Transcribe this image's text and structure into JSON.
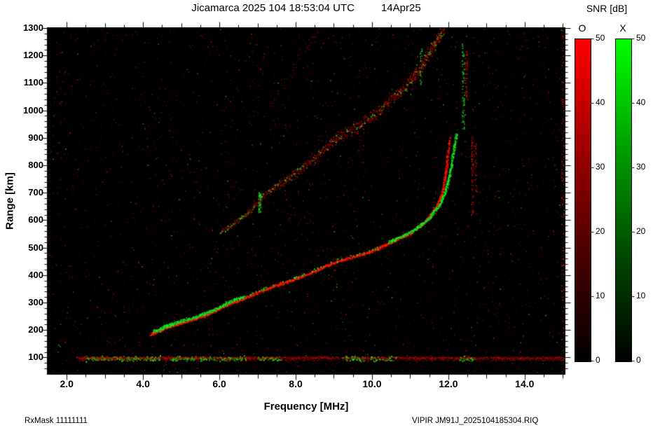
{
  "header": {
    "title": "Jicamarca 2025 104 18:53:04 UTC",
    "date": "14Apr25"
  },
  "footer": {
    "rx_mask": "RxMask 11111111",
    "filename": "VIPIR  JM91J_2025104185304.RIQ"
  },
  "colorbar": {
    "title": "SNR [dB]",
    "o_label": "O",
    "x_label": "X",
    "range_db": [
      0,
      50
    ],
    "tick_values": [
      0,
      10,
      20,
      30,
      40,
      50
    ],
    "tick_labels": [
      "0",
      "10",
      "20",
      "30",
      "40",
      "50"
    ],
    "o_gradient": [
      "#000000",
      "#4a0000",
      "#a00000",
      "#ff0000"
    ],
    "x_gradient": [
      "#000000",
      "#004a00",
      "#00a000",
      "#00ff00"
    ]
  },
  "chart_data": {
    "type": "heatmap",
    "title": "Jicamarca 2025 104 18:53:04 UTC  14Apr25",
    "xlabel": "Frequency [MHz]",
    "ylabel": "Range [km]",
    "xlim": [
      1.5,
      15.05
    ],
    "ylim": [
      40,
      1300
    ],
    "xticks": [
      2,
      4,
      6,
      8,
      10,
      12,
      14
    ],
    "xtick_labels": [
      "2.0",
      "4.0",
      "6.0",
      "8.0",
      "10.0",
      "12.0",
      "14.0"
    ],
    "yticks": [
      100,
      200,
      300,
      400,
      500,
      600,
      700,
      800,
      900,
      1000,
      1100,
      1200,
      1300
    ],
    "ytick_labels": [
      "100",
      "200",
      "300",
      "400",
      "500",
      "600",
      "700",
      "800",
      "900",
      "1000",
      "1100",
      "1200",
      "1300"
    ],
    "grid": false,
    "legend": "none",
    "background": "#000000",
    "series": [
      {
        "name": "o-trace",
        "mode": "O",
        "color": "#ff1000",
        "points": [
          [
            4.2,
            185
          ],
          [
            4.5,
            202
          ],
          [
            4.8,
            218
          ],
          [
            5.2,
            235
          ],
          [
            5.7,
            258
          ],
          [
            6.2,
            293
          ],
          [
            6.7,
            318
          ],
          [
            7.2,
            349
          ],
          [
            7.6,
            368
          ],
          [
            8.0,
            387
          ],
          [
            8.5,
            415
          ],
          [
            9.0,
            446
          ],
          [
            9.5,
            467
          ],
          [
            10.0,
            488
          ],
          [
            10.6,
            527
          ],
          [
            11.0,
            552
          ],
          [
            11.4,
            595
          ],
          [
            11.7,
            650
          ],
          [
            11.85,
            700
          ],
          [
            11.95,
            780
          ],
          [
            12.0,
            850
          ],
          [
            12.05,
            905
          ]
        ]
      },
      {
        "name": "x-trace",
        "mode": "X",
        "color": "#00e030",
        "points": [
          [
            4.3,
            196
          ],
          [
            4.6,
            213
          ],
          [
            4.9,
            229
          ],
          [
            5.3,
            246
          ],
          [
            5.8,
            270
          ],
          [
            6.3,
            305
          ],
          [
            6.8,
            330
          ],
          [
            7.3,
            360
          ],
          [
            7.7,
            379
          ],
          [
            8.1,
            398
          ],
          [
            8.6,
            426
          ],
          [
            9.1,
            456
          ],
          [
            9.6,
            477
          ],
          [
            10.1,
            498
          ],
          [
            10.7,
            537
          ],
          [
            11.1,
            563
          ],
          [
            11.5,
            607
          ],
          [
            11.8,
            662
          ],
          [
            11.95,
            712
          ],
          [
            12.08,
            790
          ],
          [
            12.15,
            858
          ],
          [
            12.22,
            918
          ]
        ]
      },
      {
        "name": "second-hop",
        "mode": "O+X",
        "color": "#aa1000",
        "points": [
          [
            6.05,
            560
          ],
          [
            6.4,
            590
          ],
          [
            6.8,
            636
          ],
          [
            7.2,
            698
          ],
          [
            7.6,
            736
          ],
          [
            8.0,
            774
          ],
          [
            8.5,
            830
          ],
          [
            9.0,
            892
          ],
          [
            9.5,
            934
          ],
          [
            10.0,
            976
          ],
          [
            10.6,
            1054
          ],
          [
            11.0,
            1104
          ],
          [
            11.4,
            1190
          ],
          [
            11.7,
            1258
          ],
          [
            11.9,
            1300
          ]
        ]
      },
      {
        "name": "third-hop",
        "mode": "O",
        "color": "#701000",
        "points": [
          [
            7.3,
            1020
          ],
          [
            7.7,
            1090
          ],
          [
            8.0,
            1160
          ],
          [
            8.3,
            1230
          ],
          [
            8.6,
            1295
          ]
        ]
      }
    ],
    "e_region": {
      "center_km": 97,
      "spread_km": 10,
      "span_mhz": [
        2.25,
        15.0
      ],
      "green_bands": [
        [
          2.5,
          4.45
        ],
        [
          4.7,
          6.7
        ],
        [
          7.0,
          7.7
        ],
        [
          9.2,
          10.65
        ],
        [
          12.25,
          12.7
        ]
      ],
      "dot_count": 5200
    },
    "streaks": [
      {
        "f": 7.05,
        "r1": 628,
        "r2": 702,
        "color": "green",
        "density": 2.0
      },
      {
        "f": 11.28,
        "r1": 1090,
        "r2": 1250,
        "color": "green",
        "density": 0.45
      },
      {
        "f": 12.38,
        "r1": 930,
        "r2": 1250,
        "color": "green",
        "density": 0.6
      },
      {
        "f": 12.46,
        "r1": 1040,
        "r2": 1220,
        "color": "red",
        "density": 0.5
      },
      {
        "f": 12.62,
        "r1": 615,
        "r2": 910,
        "color": "red",
        "density": 0.55
      },
      {
        "f": 12.7,
        "r1": 700,
        "r2": 885,
        "color": "red",
        "density": 0.35
      },
      {
        "f": 14.99,
        "r1": 45,
        "r2": 1295,
        "color": "red",
        "density": 0.22
      }
    ],
    "background_noise": {
      "dot_count": 16000,
      "green_fraction": 0.1
    }
  }
}
